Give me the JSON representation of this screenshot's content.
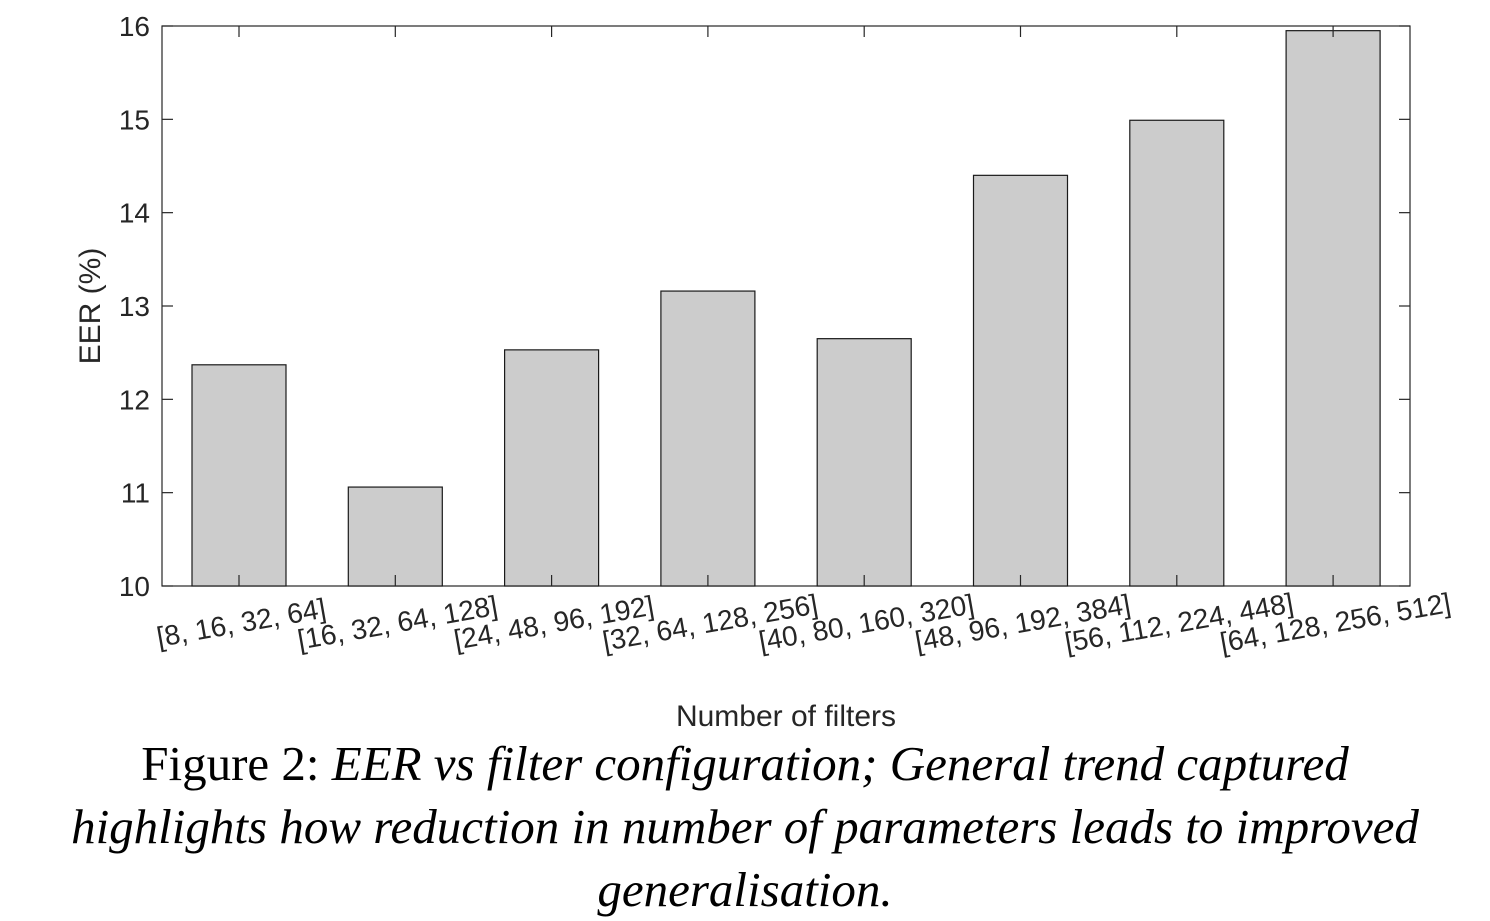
{
  "chart_data": {
    "type": "bar",
    "categories": [
      "[8, 16, 32, 64]",
      "[16, 32, 64, 128]",
      "[24, 48, 96, 192]",
      "[32, 64, 128, 256]",
      "[40, 80, 160, 320]",
      "[48, 96, 192, 384]",
      "[56, 112, 224, 448]",
      "[64, 128, 256, 512]"
    ],
    "values": [
      12.37,
      11.06,
      12.53,
      13.16,
      12.65,
      14.4,
      14.99,
      15.95
    ],
    "xlabel": "Number of filters",
    "ylabel": "EER (%)",
    "ylim": [
      10,
      16
    ],
    "yticks": [
      10,
      11,
      12,
      13,
      14,
      15,
      16
    ],
    "bar_color": "#cccccc",
    "grid": false
  },
  "caption": {
    "lead": "Figure 2: ",
    "text": "EER vs filter configuration; General trend captured highlights how reduction in number of parameters leads to improved generalisation."
  }
}
